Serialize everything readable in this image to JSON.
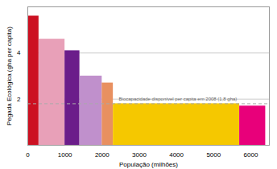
{
  "chart_data": {
    "type": "bar",
    "x": [
      0,
      300,
      1000,
      1400,
      2000,
      2300,
      5700
    ],
    "widths": [
      300,
      700,
      400,
      600,
      300,
      3400,
      700
    ],
    "values": [
      5.6,
      4.6,
      4.1,
      3.0,
      2.7,
      1.8,
      1.7
    ],
    "colors": [
      "#cc1122",
      "#e8a0b8",
      "#6b1d8a",
      "#c090cc",
      "#e89060",
      "#f5c800",
      "#e8007a"
    ],
    "xlabel": "População (milhões)",
    "ylabel": "Pegada Ecológica (gha per capita)",
    "xlim": [
      0,
      6500
    ],
    "ylim": [
      0,
      6.0
    ],
    "xticks": [
      0,
      1000,
      2000,
      3000,
      4000,
      5000,
      6000
    ],
    "yticks": [
      2,
      4
    ],
    "grid": true,
    "reference_line": {
      "value": 1.8,
      "color": "#aaaaaa",
      "line_style": "dashed"
    },
    "annotations": [
      {
        "text": "Biocapacidade disponível per capita em 2008 (1,8 gha)",
        "x": 2450,
        "y": 1.95
      }
    ]
  }
}
